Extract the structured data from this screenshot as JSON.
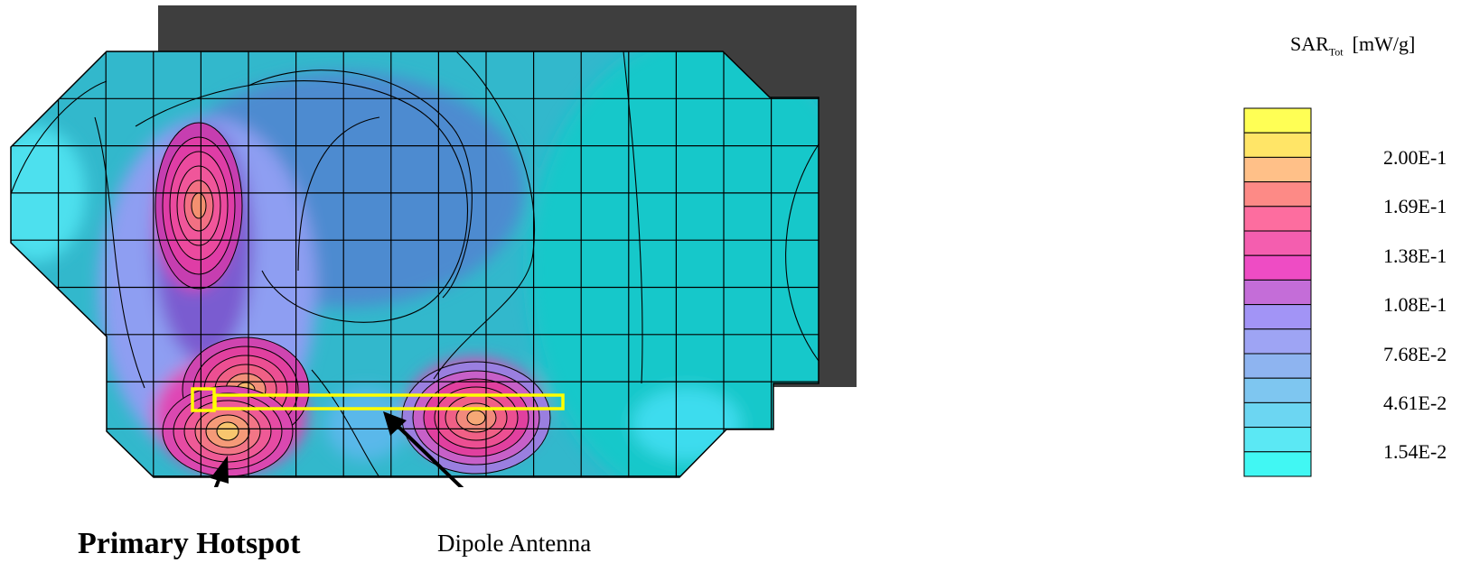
{
  "chart_data": {
    "type": "heatmap",
    "title": "",
    "colorbar": {
      "quantity_main": "SAR",
      "quantity_sub": "Tot",
      "unit": "[mW/g]",
      "tick_labels": [
        "2.00E-1",
        "1.69E-1",
        "1.38E-1",
        "1.08E-1",
        "7.68E-2",
        "4.61E-2",
        "1.54E-2"
      ],
      "tick_values": [
        0.2,
        0.169,
        0.138,
        0.108,
        0.0768,
        0.0461,
        0.0154
      ],
      "levels_colors": [
        "#41F7F3",
        "#5BE8F4",
        "#6CD6F2",
        "#7EC6F0",
        "#8EB4F0",
        "#9EA4F4",
        "#A294F6",
        "#C46DD8",
        "#EE4CC4",
        "#F45EAF",
        "#FD6D9F",
        "#FD8A86",
        "#FFC088",
        "#FFE567",
        "#FFFF55"
      ]
    },
    "hotspots": [
      {
        "name": "Primary Hotspot",
        "peak_sar_mw_per_g": 0.2,
        "location": "lower-left, below antenna feed"
      },
      {
        "name": "",
        "peak_sar_mw_per_g": 0.16,
        "location": "upper-left"
      },
      {
        "name": "",
        "peak_sar_mw_per_g": 0.17,
        "location": "lower-center, antenna tip"
      }
    ],
    "background_sar_range": [
      0.015,
      0.06
    ],
    "grid": true,
    "legend_position": "right"
  },
  "annotations": {
    "primary_hotspot": "Primary Hotspot",
    "dipole_antenna": "Dipole Antenna"
  },
  "colors": {
    "shadow": "#3E3E3E",
    "antenna_outline": "#FFFF00",
    "contour_lines": "#000000"
  }
}
